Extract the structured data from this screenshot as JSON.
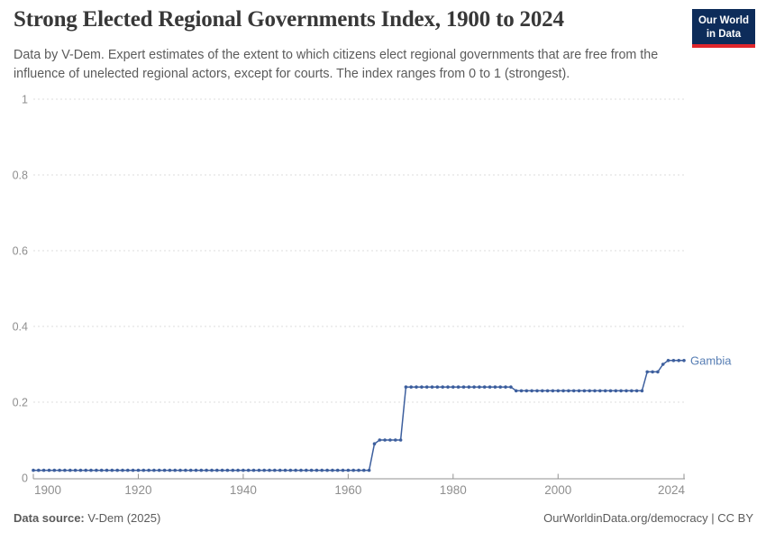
{
  "header": {
    "title": "Strong Elected Regional Governments Index, 1900 to 2024",
    "subtitle": "Data by V-Dem. Expert estimates of the extent to which citizens elect regional governments that are free from the influence of unelected regional actors, except for courts. The index ranges from 0 to 1 (strongest).",
    "logo_line1": "Our World",
    "logo_line2": "in Data"
  },
  "footer": {
    "source_label": "Data source:",
    "source_value": " V-Dem (2025)",
    "citation_link": "OurWorldinData.org/democracy",
    "citation_suffix": " | CC BY"
  },
  "colors": {
    "line": "#3d5f9e",
    "entity_label": "#577eb4",
    "grid": "#dcdcdc",
    "axis": "#929292",
    "tick_label": "#8f8f8f",
    "logo_bg": "#0d2c5a",
    "logo_bar": "#e0262c"
  },
  "chart_data": {
    "type": "line",
    "title": "Strong Elected Regional Governments Index, 1900 to 2024",
    "entity": "Gambia",
    "xlabel": "",
    "ylabel": "",
    "xlim": [
      1900,
      2024
    ],
    "ylim": [
      0,
      1
    ],
    "x_ticks": [
      1900,
      1920,
      1940,
      1960,
      1980,
      2000,
      2024
    ],
    "y_ticks": [
      0,
      0.2,
      0.4,
      0.6,
      0.8,
      1
    ],
    "grid": "dashed-horizontal",
    "legend_position": "end-of-line-label",
    "series": [
      {
        "name": "Gambia",
        "step_segments": [
          {
            "from": 1900,
            "to": 1964,
            "value": 0.02
          },
          {
            "from": 1965,
            "to": 1965,
            "value": 0.09
          },
          {
            "from": 1966,
            "to": 1970,
            "value": 0.1
          },
          {
            "from": 1971,
            "to": 1991,
            "value": 0.24
          },
          {
            "from": 1992,
            "to": 2016,
            "value": 0.23
          },
          {
            "from": 2017,
            "to": 2019,
            "value": 0.28
          },
          {
            "from": 2020,
            "to": 2020,
            "value": 0.3
          },
          {
            "from": 2021,
            "to": 2024,
            "value": 0.31
          }
        ]
      }
    ]
  }
}
